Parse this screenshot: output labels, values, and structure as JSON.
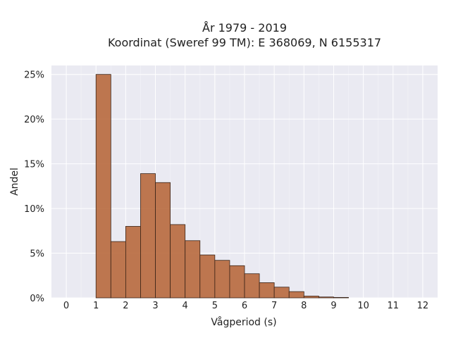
{
  "chart_data": {
    "type": "bar",
    "title_lines": [
      "År 1979 - 2019",
      "Koordinat (Sweref 99 TM): E 368069, N 6155317"
    ],
    "xlabel": "Vågperiod (s)",
    "ylabel": "Andel",
    "xlim": [
      -0.5,
      12.5
    ],
    "ylim": [
      0,
      0.26
    ],
    "xticks": [
      0,
      1,
      2,
      3,
      4,
      5,
      6,
      7,
      8,
      9,
      10,
      11,
      12
    ],
    "yticks": [
      0,
      0.05,
      0.1,
      0.15,
      0.2,
      0.25
    ],
    "ytick_labels": [
      "0%",
      "5%",
      "10%",
      "15%",
      "20%",
      "25%"
    ],
    "bin_edges": [
      1.0,
      1.5,
      2.0,
      2.5,
      3.0,
      3.5,
      4.0,
      4.5,
      5.0,
      5.5,
      6.0,
      6.5,
      7.0,
      7.5,
      8.0,
      8.5,
      9.0,
      9.5
    ],
    "values": [
      0.25,
      0.063,
      0.08,
      0.139,
      0.129,
      0.082,
      0.064,
      0.048,
      0.042,
      0.036,
      0.027,
      0.017,
      0.012,
      0.007,
      0.002,
      0.001,
      0.0005
    ],
    "grid": true,
    "bar_color": "#b8693d",
    "plot_background": "#eaeaf2"
  }
}
